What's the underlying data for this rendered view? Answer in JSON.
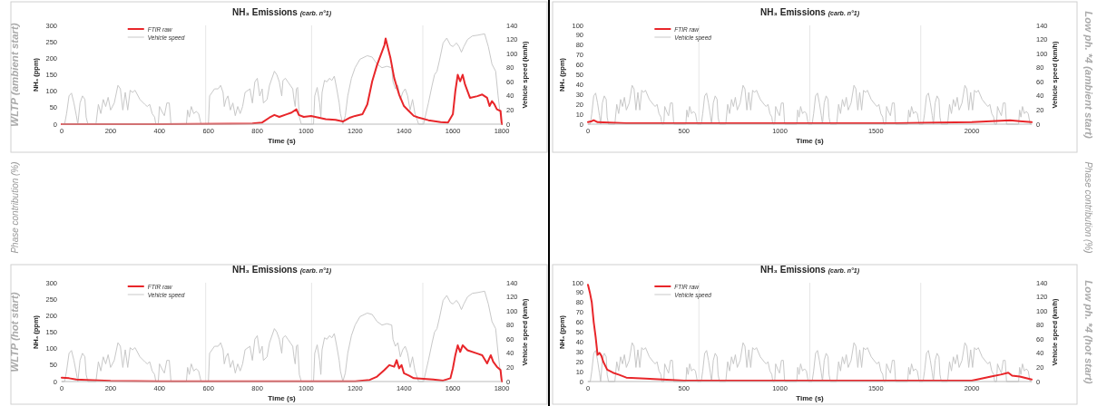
{
  "chart_data": [
    {
      "type": "line",
      "title": "NH₃ Emissions",
      "subtitle": "(carb. n°1)",
      "xlabel": "Time (s)",
      "ylabel": "NH₃ (ppm)",
      "y2label": "Vehicle speed (km/h)",
      "annotations": [
        "WLTP (ambient start)",
        "Phase contribution (%)"
      ],
      "xlim": [
        0,
        1800
      ],
      "xticks": [
        0,
        200,
        400,
        600,
        800,
        1000,
        1200,
        1400,
        1600,
        1800
      ],
      "ylim": [
        0,
        300
      ],
      "yticks": [
        0,
        50,
        100,
        150,
        200,
        250,
        300
      ],
      "y2lim": [
        0,
        140
      ],
      "y2ticks": [
        0,
        20,
        40,
        60,
        80,
        100,
        120,
        140
      ],
      "legend": "top left",
      "ref_lines": [
        {
          "axis": "x",
          "value": 589,
          "color": "#e6e6e6"
        },
        {
          "axis": "x",
          "value": 1022,
          "color": "#e6e6e6"
        },
        {
          "axis": "x",
          "value": 1477,
          "color": "#e6e6e6"
        }
      ],
      "series": [
        {
          "name": "FTIR raw",
          "color": "#e8262a",
          "x": [
            0,
            400,
            780,
            820,
            850,
            870,
            890,
            920,
            940,
            960,
            970,
            990,
            1020,
            1050,
            1080,
            1120,
            1150,
            1180,
            1200,
            1230,
            1250,
            1270,
            1290,
            1300,
            1310,
            1320,
            1325,
            1335,
            1345,
            1360,
            1380,
            1400,
            1420,
            1440,
            1460,
            1500,
            1550,
            1580,
            1600,
            1610,
            1620,
            1630,
            1640,
            1650,
            1670,
            1700,
            1720,
            1740,
            1750,
            1760,
            1770,
            1780,
            1795,
            1800
          ],
          "values": [
            0,
            0,
            2,
            5,
            20,
            28,
            22,
            30,
            35,
            45,
            28,
            22,
            25,
            20,
            15,
            13,
            8,
            20,
            25,
            30,
            60,
            130,
            180,
            200,
            220,
            240,
            260,
            230,
            200,
            140,
            90,
            55,
            40,
            25,
            20,
            12,
            6,
            5,
            30,
            100,
            150,
            130,
            150,
            120,
            80,
            85,
            90,
            80,
            55,
            70,
            60,
            45,
            40,
            0
          ]
        },
        {
          "name": "Vehicle speed",
          "color": "#c8c8c8",
          "axis": "y2",
          "x": [
            0,
            12,
            20,
            30,
            40,
            50,
            60,
            66,
            75,
            85,
            95,
            100,
            107,
            140,
            150,
            160,
            170,
            180,
            190,
            200,
            215,
            230,
            240,
            250,
            260,
            270,
            280,
            290,
            300,
            320,
            340,
            350,
            360,
            370,
            380,
            385,
            395,
            400,
            410,
            420,
            430,
            440,
            447,
            510,
            515,
            522,
            530,
            540,
            550,
            560,
            570,
            600,
            605,
            615,
            625,
            640,
            650,
            660,
            665,
            672,
            680,
            690,
            700,
            710,
            720,
            730,
            740,
            750,
            770,
            780,
            790,
            800,
            810,
            820,
            825,
            840,
            850,
            870,
            880,
            890,
            900,
            905,
            915,
            925,
            935,
            945,
            950,
            955,
            960,
            965,
            972,
            980,
            1030,
            1035,
            1045,
            1055,
            1060,
            1065,
            1075,
            1085,
            1095,
            1105,
            1115,
            1125,
            1135,
            1140,
            1150,
            1160,
            1170,
            1185,
            1200,
            1220,
            1250,
            1270,
            1290,
            1310,
            1330,
            1350,
            1355,
            1365,
            1375,
            1385,
            1395,
            1405,
            1415,
            1425,
            1435,
            1445,
            1455,
            1460,
            1480,
            1500,
            1515,
            1525,
            1535,
            1545,
            1560,
            1575,
            1590,
            1600,
            1615,
            1625,
            1635,
            1645,
            1660,
            1680,
            1700,
            1715,
            1730,
            1745,
            1760,
            1775,
            1785,
            1795,
            1800
          ],
          "values": [
            0,
            0,
            15,
            40,
            44,
            30,
            12,
            0,
            30,
            40,
            35,
            10,
            0,
            0,
            28,
            15,
            35,
            25,
            38,
            20,
            30,
            55,
            50,
            20,
            45,
            20,
            48,
            45,
            48,
            35,
            28,
            25,
            28,
            15,
            10,
            0,
            0,
            25,
            18,
            12,
            30,
            30,
            0,
            0,
            20,
            10,
            25,
            15,
            18,
            15,
            0,
            0,
            40,
            45,
            50,
            50,
            55,
            45,
            25,
            35,
            40,
            20,
            30,
            12,
            25,
            15,
            25,
            45,
            50,
            30,
            60,
            65,
            40,
            50,
            30,
            35,
            55,
            75,
            70,
            60,
            40,
            62,
            65,
            60,
            55,
            50,
            35,
            25,
            50,
            52,
            10,
            0,
            0,
            40,
            52,
            30,
            10,
            45,
            62,
            60,
            65,
            62,
            68,
            50,
            30,
            15,
            0,
            12,
            40,
            65,
            80,
            92,
            97,
            95,
            85,
            80,
            82,
            80,
            60,
            50,
            55,
            35,
            45,
            50,
            40,
            20,
            35,
            15,
            5,
            0,
            0,
            30,
            55,
            70,
            75,
            90,
            115,
            122,
            112,
            110,
            115,
            110,
            102,
            110,
            120,
            125,
            126,
            127,
            128,
            110,
            85,
            75,
            40,
            10,
            0
          ]
        }
      ]
    },
    {
      "type": "line",
      "title": "NH₃ Emissions",
      "subtitle": "(carb. n°1)",
      "xlabel": "Time (s)",
      "ylabel": "NH₃ (ppm)",
      "y2label": "Vehicle speed (km/h)",
      "annotations": [
        "Low ph. *4 (ambient start)",
        "Phase contribution (%)"
      ],
      "xlim": [
        0,
        2312
      ],
      "xticks": [
        0,
        500,
        1000,
        1500,
        2000
      ],
      "ylim": [
        0,
        100
      ],
      "yticks": [
        0,
        10,
        20,
        30,
        40,
        50,
        60,
        70,
        80,
        90,
        100
      ],
      "y2lim": [
        0,
        140
      ],
      "y2ticks": [
        0,
        20,
        40,
        60,
        80,
        100,
        120,
        140
      ],
      "legend": "top left",
      "ref_lines": [
        {
          "axis": "x",
          "value": 578,
          "color": "#e6e6e6"
        },
        {
          "axis": "x",
          "value": 1156,
          "color": "#e6e6e6"
        },
        {
          "axis": "x",
          "value": 1734,
          "color": "#e6e6e6"
        }
      ],
      "series": [
        {
          "name": "FTIR raw",
          "color": "#e8262a",
          "x": [
            0,
            20,
            30,
            50,
            200,
            1000,
            1600,
            2000,
            2100,
            2200,
            2250,
            2312
          ],
          "values": [
            2,
            3,
            4,
            2,
            1,
            1,
            1,
            2,
            3,
            4,
            3,
            2
          ]
        },
        {
          "name": "Vehicle speed",
          "color": "#c8c8c8",
          "axis": "y2",
          "x": [
            0,
            12,
            20,
            30,
            40,
            50,
            60,
            66,
            75,
            85,
            95,
            100,
            107,
            140,
            150,
            160,
            170,
            180,
            190,
            200,
            215,
            230,
            240,
            250,
            260,
            270,
            280,
            290,
            300,
            320,
            340,
            350,
            360,
            370,
            380,
            385,
            395,
            400,
            410,
            420,
            430,
            440,
            447,
            510,
            515,
            522,
            530,
            540,
            550,
            560,
            570,
            578,
            590,
            598,
            608,
            618,
            628,
            638,
            644,
            653,
            663,
            673,
            678,
            685,
            718,
            728,
            738,
            748,
            758,
            768,
            778,
            793,
            808,
            818,
            828,
            838,
            848,
            858,
            868,
            878,
            898,
            918,
            928,
            938,
            948,
            958,
            963,
            973,
            978,
            988,
            998,
            1008,
            1018,
            1025,
            1088,
            1093,
            1100,
            1108,
            1118,
            1128,
            1138,
            1148,
            1156,
            1168,
            1176,
            1186,
            1196,
            1206,
            1216,
            1222,
            1231,
            1241,
            1251,
            1256,
            1263,
            1296,
            1306,
            1316,
            1326,
            1336,
            1346,
            1356,
            1371,
            1386,
            1396,
            1406,
            1416,
            1426,
            1436,
            1446,
            1456,
            1476,
            1496,
            1506,
            1516,
            1526,
            1536,
            1541,
            1551,
            1556,
            1566,
            1576,
            1586,
            1596,
            1603,
            1666,
            1671,
            1678,
            1686,
            1696,
            1706,
            1716,
            1726,
            1734,
            1746,
            1754,
            1764,
            1774,
            1784,
            1794,
            1800,
            1809,
            1819,
            1829,
            1834,
            1841,
            1874,
            1884,
            1894,
            1904,
            1914,
            1924,
            1934,
            1949,
            1964,
            1974,
            1984,
            1994,
            2004,
            2014,
            2024,
            2034,
            2054,
            2074,
            2084,
            2094,
            2104,
            2114,
            2119,
            2129,
            2134,
            2144,
            2154,
            2164,
            2174,
            2181,
            2244,
            2249,
            2256,
            2264,
            2274,
            2284,
            2294,
            2304,
            2312
          ],
          "values": [
            0,
            0,
            15,
            40,
            44,
            30,
            12,
            0,
            30,
            40,
            35,
            10,
            0,
            0,
            28,
            15,
            35,
            25,
            38,
            20,
            30,
            55,
            50,
            20,
            45,
            20,
            48,
            45,
            48,
            35,
            28,
            25,
            28,
            15,
            10,
            0,
            0,
            25,
            18,
            12,
            30,
            30,
            0,
            0,
            20,
            10,
            25,
            15,
            18,
            15,
            0,
            0,
            0,
            15,
            40,
            44,
            30,
            12,
            0,
            30,
            40,
            35,
            10,
            0,
            0,
            28,
            15,
            35,
            25,
            38,
            20,
            30,
            55,
            50,
            20,
            45,
            20,
            48,
            45,
            48,
            35,
            28,
            25,
            28,
            15,
            10,
            0,
            0,
            25,
            18,
            12,
            30,
            30,
            0,
            0,
            20,
            10,
            25,
            15,
            18,
            15,
            0,
            0,
            0,
            15,
            40,
            44,
            30,
            12,
            0,
            30,
            40,
            35,
            10,
            0,
            0,
            28,
            15,
            35,
            25,
            38,
            20,
            30,
            55,
            50,
            20,
            45,
            20,
            48,
            45,
            48,
            35,
            28,
            25,
            28,
            15,
            10,
            0,
            0,
            25,
            18,
            12,
            30,
            30,
            0,
            0,
            20,
            10,
            25,
            15,
            18,
            15,
            0,
            0,
            0,
            15,
            40,
            44,
            30,
            12,
            0,
            30,
            40,
            35,
            10,
            0,
            0,
            28,
            15,
            35,
            25,
            38,
            20,
            30,
            55,
            50,
            20,
            45,
            20,
            48,
            45,
            48,
            35,
            28,
            25,
            28,
            15,
            10,
            0,
            0,
            25,
            18,
            12,
            30,
            30,
            0,
            0,
            20,
            10,
            25,
            15,
            18,
            15,
            0,
            0
          ]
        }
      ]
    },
    {
      "type": "line",
      "title": "NH₃ Emissions",
      "subtitle": "(carb. n°1)",
      "xlabel": "Time (s)",
      "ylabel": "NH₃ (ppm)",
      "y2label": "Vehicle speed (km/h)",
      "annotations": [
        "WLTP (hot start)"
      ],
      "xlim": [
        0,
        1800
      ],
      "xticks": [
        0,
        200,
        400,
        600,
        800,
        1000,
        1200,
        1400,
        1600,
        1800
      ],
      "ylim": [
        0,
        300
      ],
      "yticks": [
        0,
        50,
        100,
        150,
        200,
        250,
        300
      ],
      "y2lim": [
        0,
        140
      ],
      "y2ticks": [
        0,
        20,
        40,
        60,
        80,
        100,
        120,
        140
      ],
      "legend": "top left",
      "ref_lines": [
        {
          "axis": "x",
          "value": 589,
          "color": "#e6e6e6"
        },
        {
          "axis": "x",
          "value": 1022,
          "color": "#e6e6e6"
        },
        {
          "axis": "x",
          "value": 1477,
          "color": "#e6e6e6"
        }
      ],
      "series": [
        {
          "name": "FTIR raw",
          "color": "#e8262a",
          "x": [
            0,
            30,
            60,
            100,
            200,
            400,
            1200,
            1260,
            1290,
            1320,
            1340,
            1360,
            1370,
            1380,
            1390,
            1400,
            1420,
            1440,
            1480,
            1520,
            1560,
            1590,
            1600,
            1610,
            1620,
            1630,
            1640,
            1660,
            1700,
            1720,
            1740,
            1755,
            1765,
            1780,
            1795,
            1800
          ],
          "values": [
            12,
            10,
            6,
            5,
            2,
            1,
            1,
            5,
            15,
            35,
            50,
            45,
            65,
            40,
            50,
            25,
            18,
            10,
            8,
            6,
            3,
            10,
            40,
            80,
            110,
            90,
            110,
            95,
            85,
            80,
            55,
            80,
            60,
            45,
            35,
            0
          ]
        },
        {
          "name": "Vehicle speed",
          "color": "#c8c8c8",
          "axis": "y2",
          "x": [
            0,
            12,
            20,
            30,
            40,
            50,
            60,
            66,
            75,
            85,
            95,
            100,
            107,
            140,
            150,
            160,
            170,
            180,
            190,
            200,
            215,
            230,
            240,
            250,
            260,
            270,
            280,
            290,
            300,
            320,
            340,
            350,
            360,
            370,
            380,
            385,
            395,
            400,
            410,
            420,
            430,
            440,
            447,
            510,
            515,
            522,
            530,
            540,
            550,
            560,
            570,
            600,
            605,
            615,
            625,
            640,
            650,
            660,
            665,
            672,
            680,
            690,
            700,
            710,
            720,
            730,
            740,
            750,
            770,
            780,
            790,
            800,
            810,
            820,
            825,
            840,
            850,
            870,
            880,
            890,
            900,
            905,
            915,
            925,
            935,
            945,
            950,
            955,
            960,
            965,
            972,
            980,
            1030,
            1035,
            1045,
            1055,
            1060,
            1065,
            1075,
            1085,
            1095,
            1105,
            1115,
            1125,
            1135,
            1140,
            1150,
            1160,
            1170,
            1185,
            1200,
            1220,
            1250,
            1270,
            1290,
            1310,
            1330,
            1350,
            1355,
            1365,
            1375,
            1385,
            1395,
            1405,
            1415,
            1425,
            1435,
            1445,
            1455,
            1460,
            1480,
            1500,
            1515,
            1525,
            1535,
            1545,
            1560,
            1575,
            1590,
            1600,
            1615,
            1625,
            1635,
            1645,
            1660,
            1680,
            1700,
            1715,
            1730,
            1745,
            1760,
            1775,
            1785,
            1795,
            1800
          ],
          "values": [
            0,
            0,
            15,
            40,
            44,
            30,
            12,
            0,
            30,
            40,
            35,
            10,
            0,
            0,
            28,
            15,
            35,
            25,
            38,
            20,
            30,
            55,
            50,
            20,
            45,
            20,
            48,
            45,
            48,
            35,
            28,
            25,
            28,
            15,
            10,
            0,
            0,
            25,
            18,
            12,
            30,
            30,
            0,
            0,
            20,
            10,
            25,
            15,
            18,
            15,
            0,
            0,
            40,
            45,
            50,
            50,
            55,
            45,
            25,
            35,
            40,
            20,
            30,
            12,
            25,
            15,
            25,
            45,
            50,
            30,
            60,
            65,
            40,
            50,
            30,
            35,
            55,
            75,
            70,
            60,
            40,
            62,
            65,
            60,
            55,
            50,
            35,
            25,
            50,
            52,
            10,
            0,
            0,
            40,
            52,
            30,
            10,
            45,
            62,
            60,
            65,
            62,
            68,
            50,
            30,
            15,
            0,
            12,
            40,
            65,
            80,
            92,
            97,
            95,
            85,
            80,
            82,
            80,
            60,
            50,
            55,
            35,
            45,
            50,
            40,
            20,
            35,
            15,
            5,
            0,
            0,
            30,
            55,
            70,
            75,
            90,
            115,
            122,
            112,
            110,
            115,
            110,
            102,
            110,
            120,
            125,
            126,
            127,
            128,
            110,
            85,
            75,
            40,
            10,
            0
          ]
        }
      ]
    },
    {
      "type": "line",
      "title": "NH₃ Emissions",
      "subtitle": "(carb. n°1)",
      "xlabel": "Time (s)",
      "ylabel": "NH₃ (ppm)",
      "y2label": "Vehicle speed (km/h)",
      "annotations": [
        "Low ph. *4 (hot start)"
      ],
      "xlim": [
        0,
        2312
      ],
      "xticks": [
        0,
        500,
        1000,
        1500,
        2000
      ],
      "ylim": [
        0,
        100
      ],
      "yticks": [
        0,
        10,
        20,
        30,
        40,
        50,
        60,
        70,
        80,
        90,
        100
      ],
      "y2lim": [
        0,
        140
      ],
      "y2ticks": [
        0,
        20,
        40,
        60,
        80,
        100,
        120,
        140
      ],
      "legend": "top left",
      "ref_lines": [
        {
          "axis": "x",
          "value": 578,
          "color": "#e6e6e6"
        },
        {
          "axis": "x",
          "value": 1156,
          "color": "#e6e6e6"
        },
        {
          "axis": "x",
          "value": 1734,
          "color": "#e6e6e6"
        }
      ],
      "series": [
        {
          "name": "FTIR raw",
          "color": "#e8262a",
          "x": [
            0,
            10,
            20,
            30,
            40,
            50,
            60,
            70,
            80,
            100,
            130,
            160,
            200,
            300,
            500,
            1000,
            2000,
            2050,
            2100,
            2150,
            2190,
            2210,
            2250,
            2312
          ],
          "values": [
            98,
            90,
            80,
            60,
            45,
            27,
            29,
            26,
            20,
            12,
            9,
            7,
            4,
            3,
            1,
            1,
            1,
            3,
            5,
            7,
            9,
            6,
            5,
            2
          ]
        },
        {
          "name": "Vehicle speed",
          "color": "#c8c8c8",
          "axis": "y2",
          "x": [
            0,
            12,
            20,
            30,
            40,
            50,
            60,
            66,
            75,
            85,
            95,
            100,
            107,
            140,
            150,
            160,
            170,
            180,
            190,
            200,
            215,
            230,
            240,
            250,
            260,
            270,
            280,
            290,
            300,
            320,
            340,
            350,
            360,
            370,
            380,
            385,
            395,
            400,
            410,
            420,
            430,
            440,
            447,
            510,
            515,
            522,
            530,
            540,
            550,
            560,
            570,
            578,
            590,
            598,
            608,
            618,
            628,
            638,
            644,
            653,
            663,
            673,
            678,
            685,
            718,
            728,
            738,
            748,
            758,
            768,
            778,
            793,
            808,
            818,
            828,
            838,
            848,
            858,
            868,
            878,
            898,
            918,
            928,
            938,
            948,
            958,
            963,
            973,
            978,
            988,
            998,
            1008,
            1018,
            1025,
            1088,
            1093,
            1100,
            1108,
            1118,
            1128,
            1138,
            1148,
            1156,
            1168,
            1176,
            1186,
            1196,
            1206,
            1216,
            1222,
            1231,
            1241,
            1251,
            1256,
            1263,
            1296,
            1306,
            1316,
            1326,
            1336,
            1346,
            1356,
            1371,
            1386,
            1396,
            1406,
            1416,
            1426,
            1436,
            1446,
            1456,
            1476,
            1496,
            1506,
            1516,
            1526,
            1536,
            1541,
            1551,
            1556,
            1566,
            1576,
            1586,
            1596,
            1603,
            1666,
            1671,
            1678,
            1686,
            1696,
            1706,
            1716,
            1726,
            1734,
            1746,
            1754,
            1764,
            1774,
            1784,
            1794,
            1800,
            1809,
            1819,
            1829,
            1834,
            1841,
            1874,
            1884,
            1894,
            1904,
            1914,
            1924,
            1934,
            1949,
            1964,
            1974,
            1984,
            1994,
            2004,
            2014,
            2024,
            2034,
            2054,
            2074,
            2084,
            2094,
            2104,
            2114,
            2119,
            2129,
            2134,
            2144,
            2154,
            2164,
            2174,
            2181,
            2244,
            2249,
            2256,
            2264,
            2274,
            2284,
            2294,
            2304,
            2312
          ],
          "values": [
            0,
            0,
            15,
            40,
            44,
            30,
            12,
            0,
            30,
            40,
            35,
            10,
            0,
            0,
            28,
            15,
            35,
            25,
            38,
            20,
            30,
            55,
            50,
            20,
            45,
            20,
            48,
            45,
            48,
            35,
            28,
            25,
            28,
            15,
            10,
            0,
            0,
            25,
            18,
            12,
            30,
            30,
            0,
            0,
            20,
            10,
            25,
            15,
            18,
            15,
            0,
            0,
            0,
            15,
            40,
            44,
            30,
            12,
            0,
            30,
            40,
            35,
            10,
            0,
            0,
            28,
            15,
            35,
            25,
            38,
            20,
            30,
            55,
            50,
            20,
            45,
            20,
            48,
            45,
            48,
            35,
            28,
            25,
            28,
            15,
            10,
            0,
            0,
            25,
            18,
            12,
            30,
            30,
            0,
            0,
            20,
            10,
            25,
            15,
            18,
            15,
            0,
            0,
            0,
            15,
            40,
            44,
            30,
            12,
            0,
            30,
            40,
            35,
            10,
            0,
            0,
            28,
            15,
            35,
            25,
            38,
            20,
            30,
            55,
            50,
            20,
            45,
            20,
            48,
            45,
            48,
            35,
            28,
            25,
            28,
            15,
            10,
            0,
            0,
            25,
            18,
            12,
            30,
            30,
            0,
            0,
            20,
            10,
            25,
            15,
            18,
            15,
            0,
            0,
            0,
            15,
            40,
            44,
            30,
            12,
            0,
            30,
            40,
            35,
            10,
            0,
            0,
            28,
            15,
            35,
            25,
            38,
            20,
            30,
            55,
            50,
            20,
            45,
            20,
            48,
            45,
            48,
            35,
            28,
            25,
            28,
            15,
            10,
            0,
            0,
            25,
            18,
            12,
            30,
            30,
            0,
            0,
            20,
            10,
            25,
            15,
            18,
            15,
            0,
            0
          ]
        }
      ]
    }
  ]
}
